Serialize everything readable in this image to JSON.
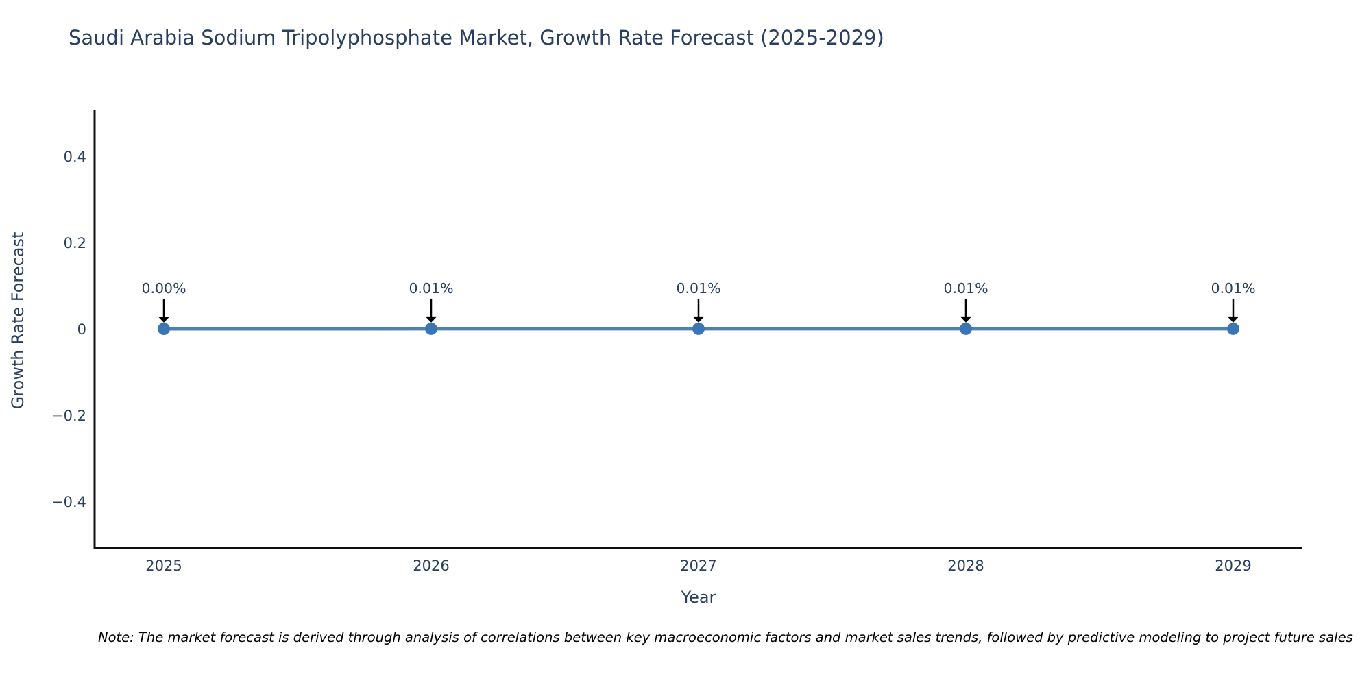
{
  "figure": {
    "note": "Note: The market forecast is derived through analysis of correlations between key macroeconomic factors and market sales trends, followed by predictive modeling to project future sales"
  },
  "chart_data": {
    "type": "line",
    "title": "Saudi Arabia Sodium Tripolyphosphate Market, Growth Rate Forecast (2025-2029)",
    "xlabel": "Year",
    "ylabel": "Growth Rate Forecast",
    "categories": [
      "2025",
      "2026",
      "2027",
      "2028",
      "2029"
    ],
    "x": [
      2025,
      2026,
      2027,
      2028,
      2029
    ],
    "y": [
      0.0,
      0.0001,
      0.0001,
      0.0001,
      0.0001
    ],
    "point_labels": [
      "0.00%",
      "0.01%",
      "0.01%",
      "0.01%",
      "0.01%"
    ],
    "yticks": [
      -0.4,
      -0.2,
      0,
      0.2,
      0.4
    ],
    "ytick_labels": [
      "−0.4",
      "−0.2",
      "0",
      "0.2",
      "0.4"
    ],
    "ylim": [
      -0.508,
      0.508
    ],
    "grid": false,
    "legend": "none",
    "colors": {
      "line": "#4d82b0",
      "marker": "#3a76b4",
      "axis": "#111111",
      "text": "#2a3f5f",
      "annotation_text": "#2a3f5f",
      "arrow": "#000000",
      "note_text": "#000000",
      "background": "#ffffff"
    }
  }
}
